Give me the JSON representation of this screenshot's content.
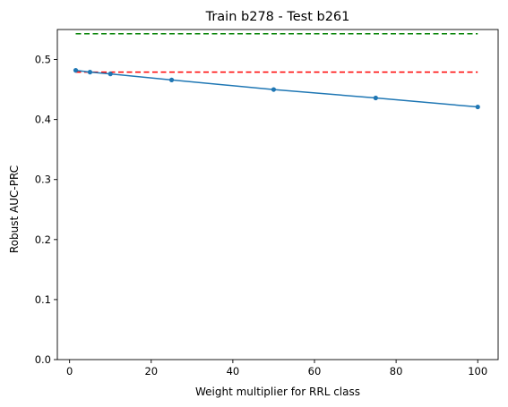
{
  "chart_data": {
    "type": "line",
    "title": "Train b278 - Test b261",
    "xlabel": "Weight multiplier for RRL class",
    "ylabel": "Robust AUC-PRC",
    "xlim": [
      -3,
      105
    ],
    "ylim": [
      0.0,
      0.55
    ],
    "x_ticks": [
      0,
      20,
      40,
      60,
      80,
      100
    ],
    "x_tick_labels": [
      "0",
      "20",
      "40",
      "60",
      "80",
      "100"
    ],
    "y_ticks": [
      0.0,
      0.1,
      0.2,
      0.3,
      0.4,
      0.5
    ],
    "y_tick_labels": [
      "0.0",
      "0.1",
      "0.2",
      "0.3",
      "0.4",
      "0.5"
    ],
    "grid": false,
    "series": [
      {
        "style": "solid-with-markers",
        "color": "#1f77b4",
        "x": [
          1.5,
          5,
          10,
          25,
          50,
          75,
          100
        ],
        "y": [
          0.482,
          0.479,
          0.476,
          0.466,
          0.45,
          0.436,
          0.421
        ]
      }
    ],
    "reference_lines": [
      {
        "color": "#008000",
        "style": "dashed",
        "y": 0.543,
        "x_range": [
          1.5,
          100
        ]
      },
      {
        "color": "#ff0000",
        "style": "dashed",
        "y": 0.479,
        "x_range": [
          1.5,
          100
        ]
      }
    ]
  }
}
